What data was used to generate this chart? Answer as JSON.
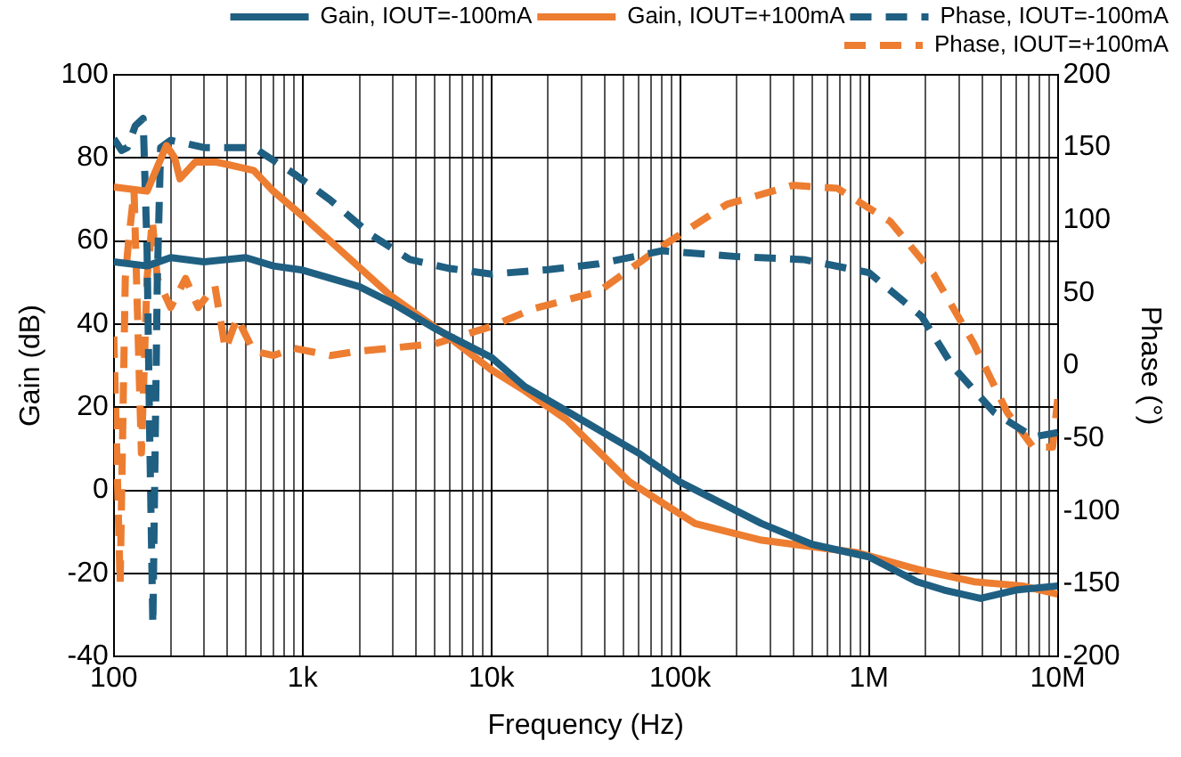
{
  "chart_data": {
    "type": "line",
    "xlabel": "Frequency (Hz)",
    "ylabel": "Gain (dB)",
    "y2label": "Phase (°)",
    "log": "x",
    "grid": true,
    "legend": "top right",
    "marker": "none",
    "xlim": [
      100,
      10000000
    ],
    "xticks": [
      {
        "value": 100,
        "label": "100"
      },
      {
        "value": 200,
        "label": null
      },
      {
        "value": 300,
        "label": null
      },
      {
        "value": 400,
        "label": null
      },
      {
        "value": 500,
        "label": null
      },
      {
        "value": 600,
        "label": null
      },
      {
        "value": 700,
        "label": null
      },
      {
        "value": 800,
        "label": null
      },
      {
        "value": 900,
        "label": null
      },
      {
        "value": 1000,
        "label": "1k"
      },
      {
        "value": 2000,
        "label": null
      },
      {
        "value": 3000,
        "label": null
      },
      {
        "value": 4000,
        "label": null
      },
      {
        "value": 5000,
        "label": null
      },
      {
        "value": 6000,
        "label": null
      },
      {
        "value": 7000,
        "label": null
      },
      {
        "value": 8000,
        "label": null
      },
      {
        "value": 9000,
        "label": null
      },
      {
        "value": 10000,
        "label": "10k"
      },
      {
        "value": 20000,
        "label": null
      },
      {
        "value": 30000,
        "label": null
      },
      {
        "value": 40000,
        "label": null
      },
      {
        "value": 50000,
        "label": null
      },
      {
        "value": 60000,
        "label": null
      },
      {
        "value": 70000,
        "label": null
      },
      {
        "value": 80000,
        "label": null
      },
      {
        "value": 90000,
        "label": null
      },
      {
        "value": 100000,
        "label": "100k"
      },
      {
        "value": 200000,
        "label": null
      },
      {
        "value": 300000,
        "label": null
      },
      {
        "value": 400000,
        "label": null
      },
      {
        "value": 500000,
        "label": null
      },
      {
        "value": 600000,
        "label": null
      },
      {
        "value": 700000,
        "label": null
      },
      {
        "value": 800000,
        "label": null
      },
      {
        "value": 900000,
        "label": null
      },
      {
        "value": 1000000,
        "label": "1M"
      },
      {
        "value": 2000000,
        "label": null
      },
      {
        "value": 3000000,
        "label": null
      },
      {
        "value": 4000000,
        "label": null
      },
      {
        "value": 5000000,
        "label": null
      },
      {
        "value": 6000000,
        "label": null
      },
      {
        "value": 7000000,
        "label": null
      },
      {
        "value": 8000000,
        "label": null
      },
      {
        "value": 9000000,
        "label": null
      },
      {
        "value": 10000000,
        "label": "10M"
      }
    ],
    "ylim": [
      -40,
      100
    ],
    "yticks": [
      -40,
      -20,
      0,
      20,
      40,
      60,
      80,
      100
    ],
    "y2lim": [
      -200,
      200
    ],
    "y2ticks": [
      -200,
      -150,
      -100,
      -50,
      0,
      50,
      100,
      150,
      200
    ],
    "series": [
      {
        "name": "Gain, IOUT=-100mA",
        "color": "#1f5f82",
        "line_style": "solid",
        "x": [
          100,
          150,
          200,
          300,
          500,
          700,
          1000,
          2000,
          3000,
          5000,
          10000,
          15000,
          30000,
          60000,
          100000,
          270000,
          500000,
          1000000,
          1800000,
          2500000,
          3900000,
          6000000,
          10000000
        ],
        "values": [
          55,
          54,
          56,
          55,
          56,
          54,
          53,
          49,
          45,
          39,
          32,
          25,
          17,
          9,
          2,
          -8,
          -13,
          -16,
          -22,
          -24,
          -26,
          -24,
          -23
        ]
      },
      {
        "name": "Gain, IOUT=+100mA",
        "color": "#ed7d31",
        "line_style": "solid",
        "x": [
          100,
          150,
          190,
          210,
          224,
          270,
          350,
          550,
          700,
          1000,
          1400,
          2900,
          5900,
          10000,
          15000,
          25000,
          54000,
          120000,
          270000,
          870000,
          1800000,
          3600000,
          6500000,
          10000000
        ],
        "values": [
          73,
          72,
          83,
          80,
          75,
          79,
          79,
          77,
          72,
          66,
          60,
          47,
          37,
          29,
          24,
          17,
          2,
          -8,
          -12,
          -15,
          -19,
          -22,
          -23,
          -25
        ]
      },
      {
        "name": "Phase, IOUT=-100mA",
        "color": "#1f5f82",
        "line_style": "dashed",
        "axis": "y2",
        "x": [
          100,
          110,
          118,
          130,
          143,
          150,
          155,
          161,
          170,
          177,
          200,
          300,
          400,
          550,
          900,
          1400,
          2300,
          3700,
          5900,
          10000,
          20000,
          37000,
          80000,
          200000,
          450000,
          1000000,
          1900000,
          2800000,
          4600000,
          7400000,
          10000000
        ],
        "values": [
          156,
          148,
          150,
          165,
          170,
          80,
          -50,
          -178,
          60,
          150,
          155,
          150,
          150,
          150,
          132,
          114,
          90,
          73,
          67,
          63,
          66,
          70,
          79,
          75,
          73,
          64,
          34,
          -1,
          -32,
          -49,
          -46
        ]
      },
      {
        "name": "Phase, IOUT=+100mA",
        "color": "#ed7d31",
        "line_style": "dashed",
        "axis": "y2",
        "x": [
          100,
          108,
          115,
          120,
          128,
          140,
          150,
          160,
          170,
          200,
          240,
          280,
          343,
          390,
          450,
          550,
          700,
          900,
          1400,
          2000,
          5000,
          10000,
          16500,
          37000,
          80000,
          177000,
          395000,
          680000,
          1300000,
          2200000,
          3600000,
          5400000,
          7400000,
          9400000,
          10000000
        ],
        "values": [
          20,
          -150,
          60,
          87,
          120,
          -60,
          60,
          100,
          60,
          40,
          60,
          40,
          55,
          11,
          33,
          10,
          7,
          12,
          7,
          10,
          15,
          27,
          39,
          51,
          82,
          111,
          124,
          122,
          99,
          63,
          15,
          -32,
          -56,
          -56,
          -23
        ]
      }
    ]
  }
}
